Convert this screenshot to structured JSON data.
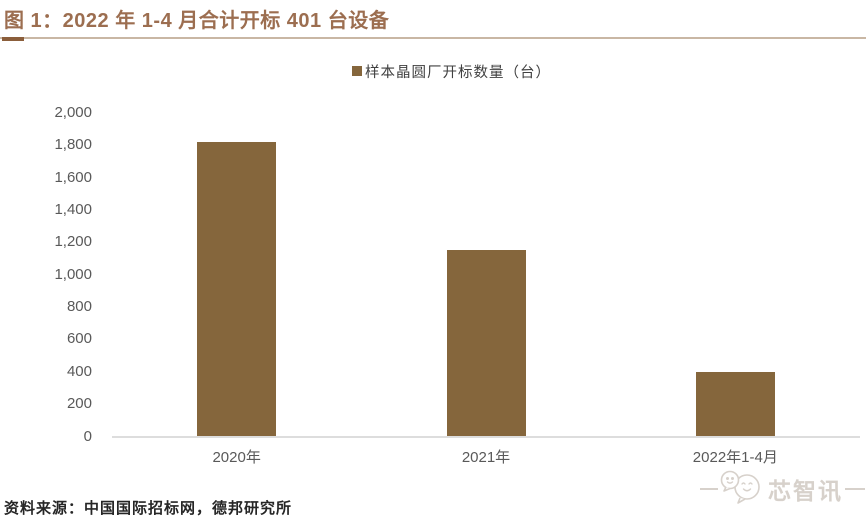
{
  "header": {
    "title": "图 1：2022 年 1-4 月合计开标 401 台设备",
    "accent_color": "#9C6E50"
  },
  "legend": {
    "label": "样本晶圆厂开标数量（台）",
    "swatch_color": "#85663C"
  },
  "chart_data": {
    "type": "bar",
    "title": "2022 年 1-4 月合计开标 401 台设备",
    "categories": [
      "2020年",
      "2021年",
      "2022年1-4月"
    ],
    "values": [
      1820,
      1150,
      401
    ],
    "series": [
      {
        "name": "样本晶圆厂开标数量（台）",
        "values": [
          1820,
          1150,
          401
        ]
      }
    ],
    "xlabel": "",
    "ylabel": "",
    "ylim": [
      0,
      2000
    ],
    "ytick_step": 200,
    "ytick_labels": [
      "0",
      "200",
      "400",
      "600",
      "800",
      "1,000",
      "1,200",
      "1,400",
      "1,600",
      "1,800",
      "2,000"
    ],
    "grid": false,
    "legend_position": "top-center",
    "bar_color": "#85663C"
  },
  "footer": {
    "source_text": "资料来源：中国国际招标网，德邦研究所"
  },
  "watermark": {
    "text": "芯智讯",
    "icon": "chat-bubbles-logo",
    "color": "#D7D1CB"
  }
}
